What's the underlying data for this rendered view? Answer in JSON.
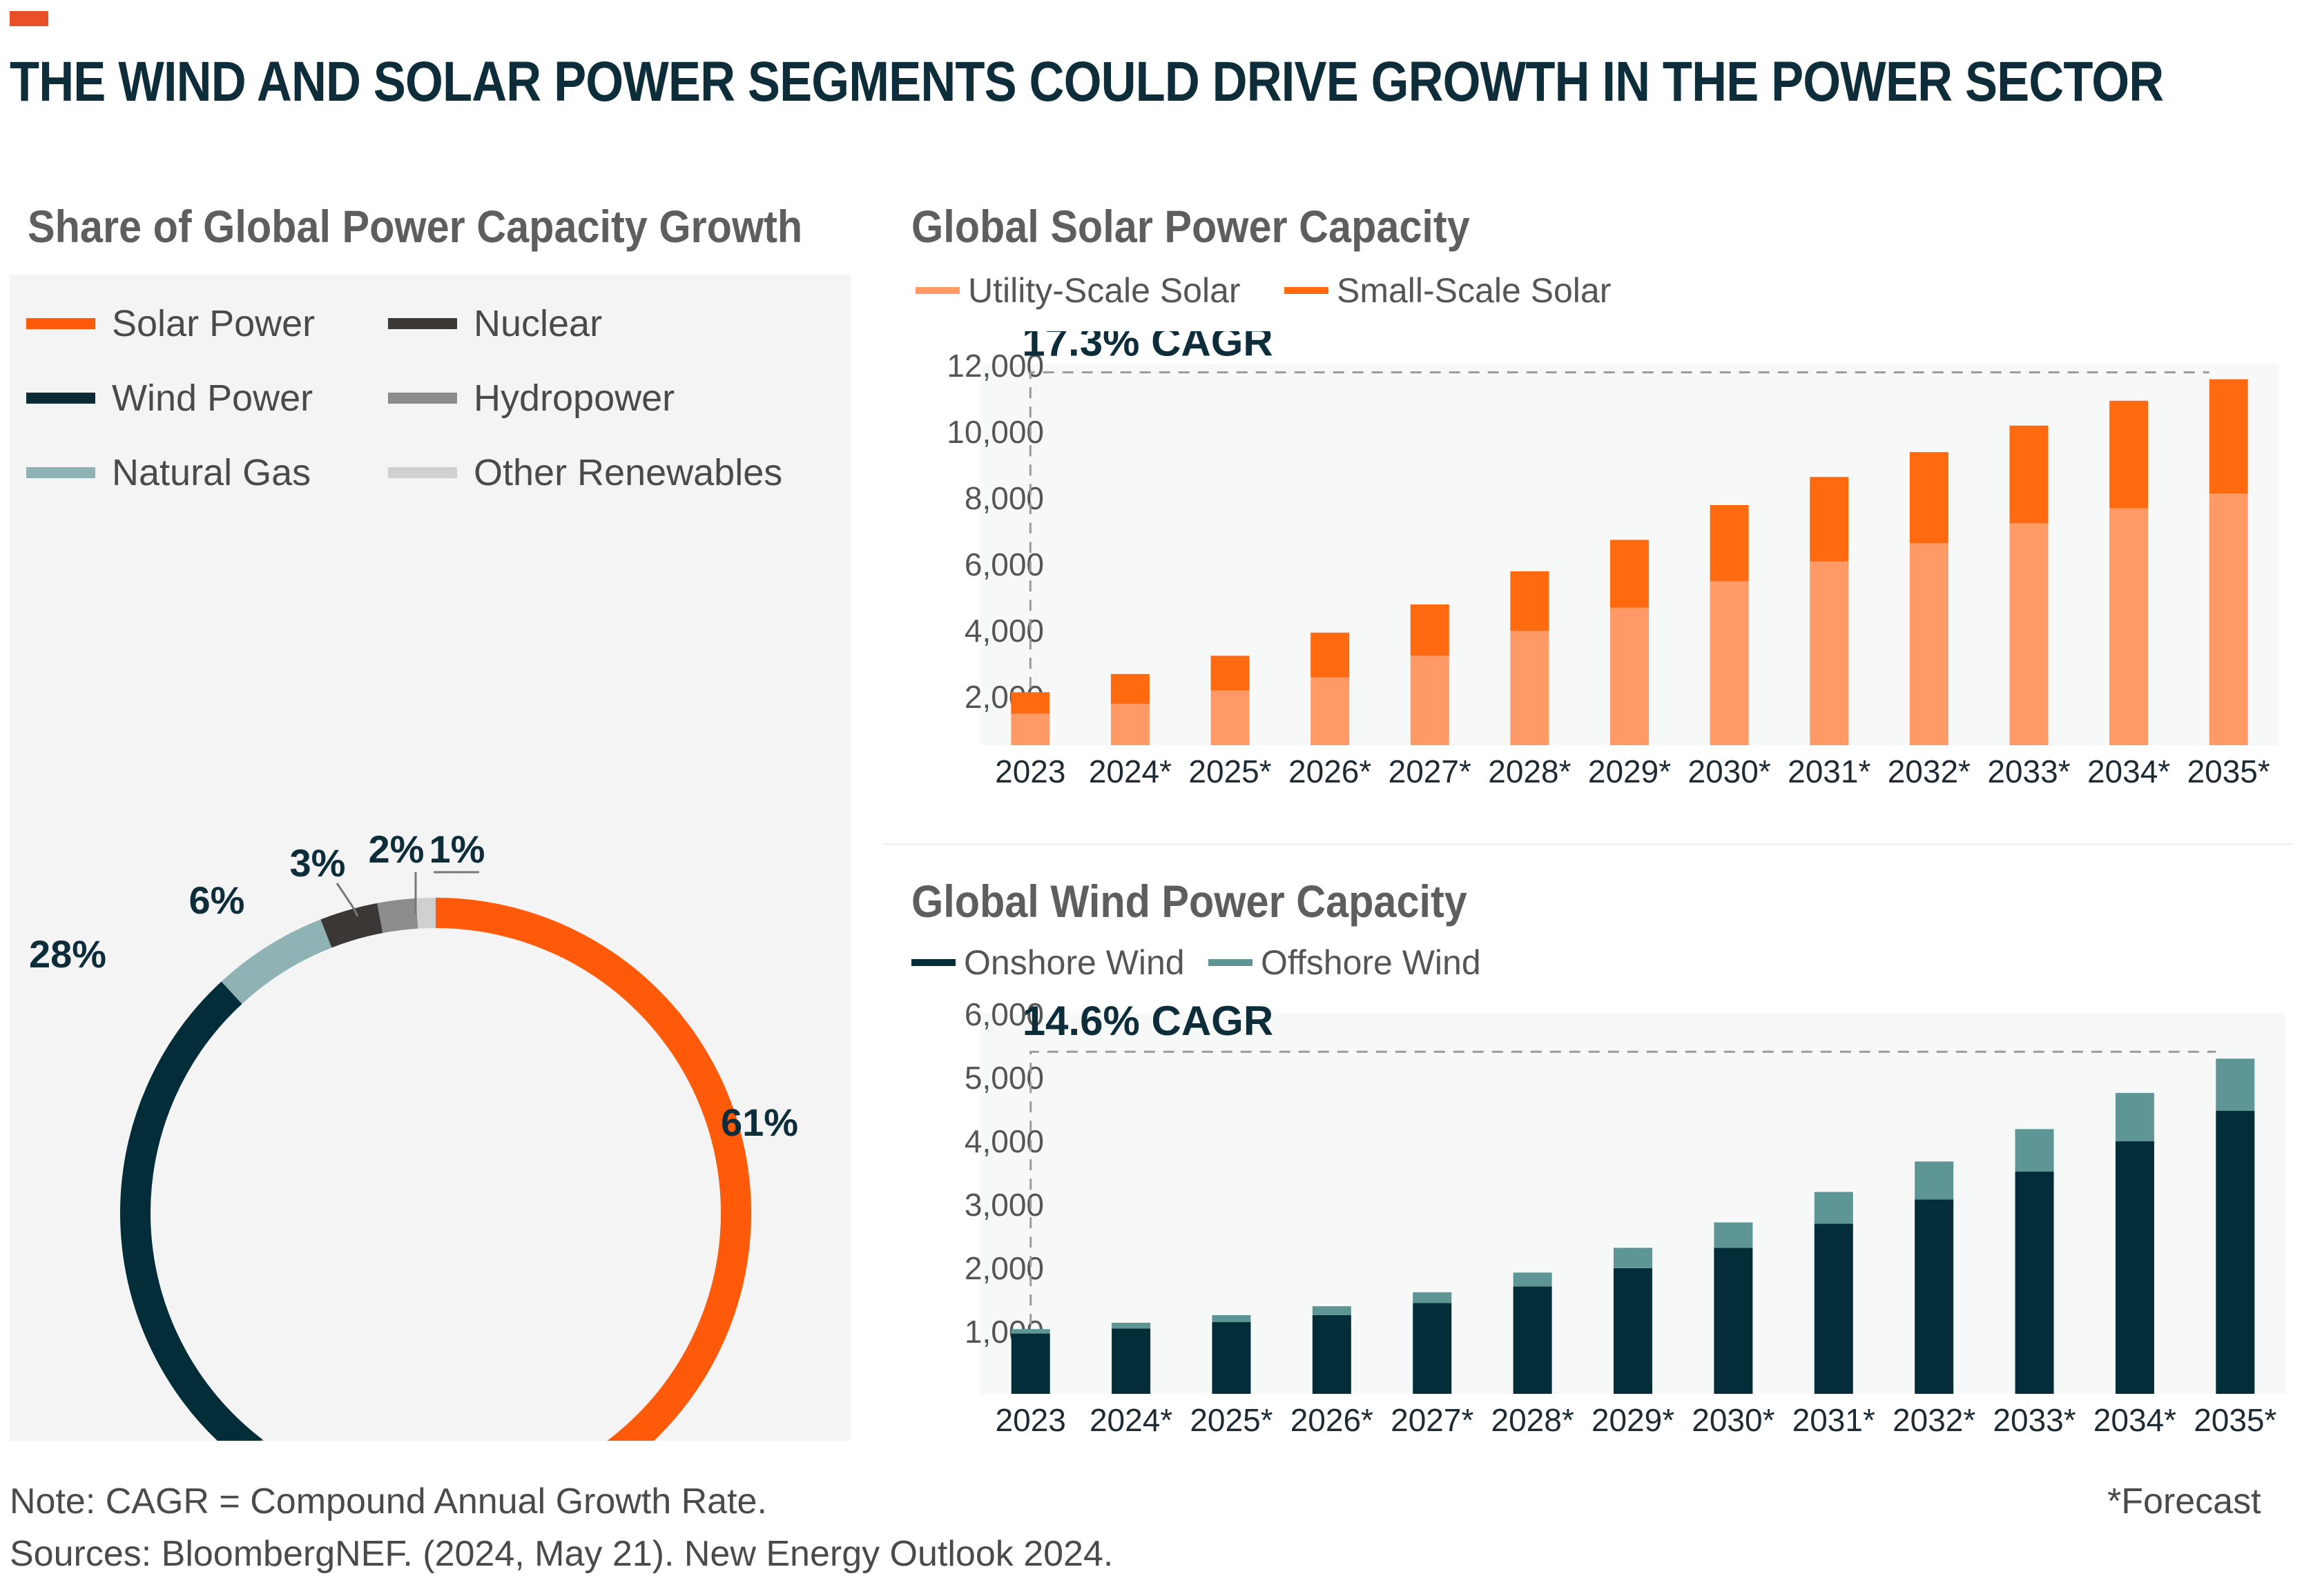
{
  "header": {
    "title": "THE WIND AND SOLAR POWER SEGMENTS COULD DRIVE GROWTH IN THE POWER SECTOR",
    "accent_color": "#E8502A"
  },
  "donut": {
    "title": "Share of Global Power Capacity Growth",
    "legend": [
      {
        "label": "Solar Power",
        "color": "#FF5A0A"
      },
      {
        "label": "Nuclear",
        "color": "#3a3734"
      },
      {
        "label": "Wind Power",
        "color": "#0b2c36"
      },
      {
        "label": "Hydropower",
        "color": "#8c8c8c"
      },
      {
        "label": "Natural Gas",
        "color": "#8fb3b5"
      },
      {
        "label": "Other Renewables",
        "color": "#d0d0d0"
      }
    ]
  },
  "solar": {
    "title": "Global Solar Power Capacity",
    "legend": [
      {
        "label": "Utility-Scale Solar",
        "color": "#FF9A66"
      },
      {
        "label": "Small-Scale Solar",
        "color": "#FF6A10"
      }
    ],
    "cagr": "17.3% CAGR"
  },
  "wind": {
    "title": "Global Wind Power Capacity",
    "legend": [
      {
        "label": "Onshore Wind",
        "color": "#032D38"
      },
      {
        "label": "Offshore Wind",
        "color": "#5E9696"
      }
    ],
    "cagr": "14.6% CAGR"
  },
  "footer": {
    "note": "Note: CAGR = Compound Annual Growth Rate.",
    "sources": "Sources: BloombergNEF. (2024, May 21). New Energy Outlook 2024.",
    "forecast": "*Forecast"
  },
  "chart_data": [
    {
      "type": "pie",
      "title": "Share of Global Power Capacity Growth",
      "categories": [
        "Solar Power",
        "Wind Power",
        "Natural Gas",
        "Nuclear",
        "Hydropower",
        "Other Renewables"
      ],
      "values": [
        61,
        28,
        6,
        3,
        2,
        1
      ],
      "labels": [
        "61%",
        "28%",
        "6%",
        "3%",
        "2%",
        "1%"
      ],
      "colors": [
        "#FF5A0A",
        "#032D38",
        "#8FB3B5",
        "#3A3734",
        "#8C8C8C",
        "#D0D0D0"
      ],
      "legend_position": "top"
    },
    {
      "type": "bar",
      "stacked": true,
      "title": "Global Solar Power Capacity",
      "categories": [
        "2023",
        "2024*",
        "2025*",
        "2026*",
        "2027*",
        "2028*",
        "2029*",
        "2030*",
        "2031*",
        "2032*",
        "2033*",
        "2034*",
        "2035*"
      ],
      "series": [
        {
          "name": "Utility-Scale Solar",
          "color": "#FF9A66",
          "values": [
            950,
            1250,
            1650,
            2050,
            2700,
            3450,
            4150,
            4950,
            5550,
            6100,
            6700,
            7150,
            7600
          ]
        },
        {
          "name": "Small-Scale Solar",
          "color": "#FF6A10",
          "values": [
            650,
            900,
            1050,
            1350,
            1550,
            1800,
            2050,
            2300,
            2550,
            2750,
            2950,
            3250,
            3450
          ]
        }
      ],
      "ylim": [
        500,
        12000
      ],
      "yticks": [
        "2,000",
        "4,000",
        "6,000",
        "8,000",
        "10,000",
        "12,000"
      ],
      "ytick_values": [
        2000,
        4000,
        6000,
        8000,
        10000,
        12000
      ],
      "annotation": "17.3% CAGR",
      "grid": false
    },
    {
      "type": "bar",
      "stacked": true,
      "title": "Global Wind Power Capacity",
      "categories": [
        "2023",
        "2024*",
        "2025*",
        "2026*",
        "2027*",
        "2028*",
        "2029*",
        "2030*",
        "2031*",
        "2032*",
        "2033*",
        "2034*",
        "2035*"
      ],
      "series": [
        {
          "name": "Onshore Wind",
          "color": "#032D38",
          "values": [
            950,
            1030,
            1130,
            1240,
            1430,
            1690,
            1980,
            2300,
            2680,
            3060,
            3500,
            3980,
            4460
          ]
        },
        {
          "name": "Offshore Wind",
          "color": "#5E9696",
          "values": [
            70,
            90,
            110,
            140,
            170,
            220,
            320,
            400,
            500,
            600,
            670,
            760,
            820
          ]
        }
      ],
      "ylim": [
        0,
        6000
      ],
      "yticks": [
        "1,000",
        "2,000",
        "3,000",
        "4,000",
        "5,000",
        "6,000"
      ],
      "ytick_values": [
        1000,
        2000,
        3000,
        4000,
        5000,
        6000
      ],
      "annotation": "14.6% CAGR",
      "grid": false
    }
  ]
}
